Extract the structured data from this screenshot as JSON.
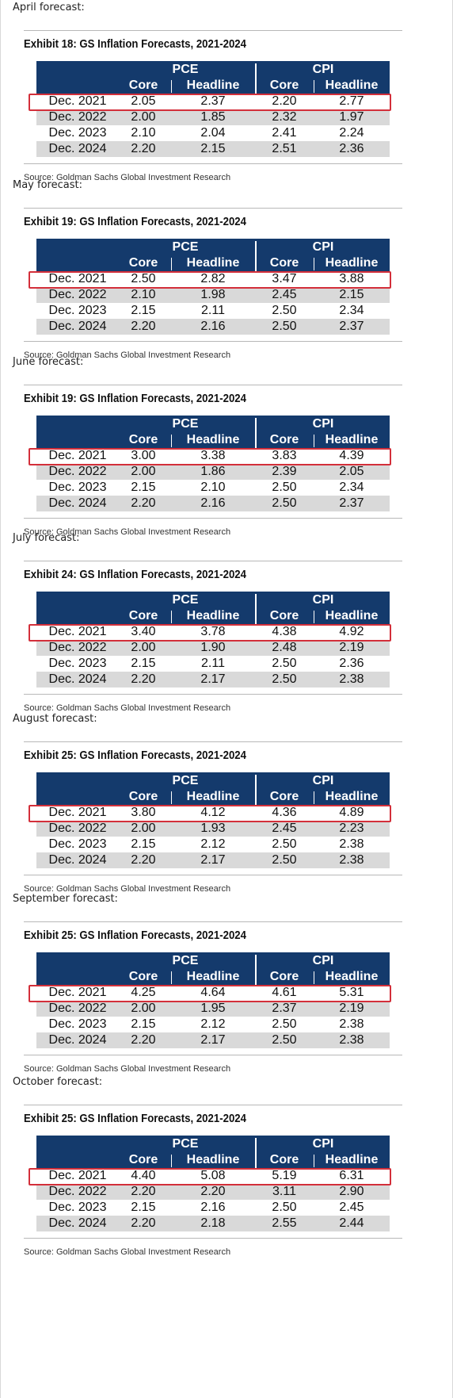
{
  "header_groups": [
    "PCE",
    "CPI"
  ],
  "sub_headers": [
    "Core",
    "Headline",
    "Core",
    "Headline"
  ],
  "source": "Source: Goldman Sachs Global Investment Research",
  "highlight_color": "#d32f3a",
  "header_color": "#143a6c",
  "sections": [
    {
      "month_label": "April forecast:",
      "exhibit_title": "Exhibit 18: GS Inflation Forecasts, 2021-2024",
      "rows": [
        {
          "label": "Dec. 2021",
          "pce_core": "2.05",
          "pce_headline": "2.37",
          "cpi_core": "2.20",
          "cpi_headline": "2.77"
        },
        {
          "label": "Dec. 2022",
          "pce_core": "2.00",
          "pce_headline": "1.85",
          "cpi_core": "2.32",
          "cpi_headline": "1.97"
        },
        {
          "label": "Dec. 2023",
          "pce_core": "2.10",
          "pce_headline": "2.04",
          "cpi_core": "2.41",
          "cpi_headline": "2.24"
        },
        {
          "label": "Dec. 2024",
          "pce_core": "2.20",
          "pce_headline": "2.15",
          "cpi_core": "2.51",
          "cpi_headline": "2.36"
        }
      ]
    },
    {
      "month_label": "May forecast:",
      "exhibit_title": "Exhibit 19: GS Inflation Forecasts, 2021-2024",
      "rows": [
        {
          "label": "Dec. 2021",
          "pce_core": "2.50",
          "pce_headline": "2.82",
          "cpi_core": "3.47",
          "cpi_headline": "3.88"
        },
        {
          "label": "Dec. 2022",
          "pce_core": "2.10",
          "pce_headline": "1.98",
          "cpi_core": "2.45",
          "cpi_headline": "2.15"
        },
        {
          "label": "Dec. 2023",
          "pce_core": "2.15",
          "pce_headline": "2.11",
          "cpi_core": "2.50",
          "cpi_headline": "2.34"
        },
        {
          "label": "Dec. 2024",
          "pce_core": "2.20",
          "pce_headline": "2.16",
          "cpi_core": "2.50",
          "cpi_headline": "2.37"
        }
      ]
    },
    {
      "month_label": "June forecast:",
      "exhibit_title": "Exhibit 19: GS Inflation Forecasts, 2021-2024",
      "rows": [
        {
          "label": "Dec. 2021",
          "pce_core": "3.00",
          "pce_headline": "3.38",
          "cpi_core": "3.83",
          "cpi_headline": "4.39"
        },
        {
          "label": "Dec. 2022",
          "pce_core": "2.00",
          "pce_headline": "1.86",
          "cpi_core": "2.39",
          "cpi_headline": "2.05"
        },
        {
          "label": "Dec. 2023",
          "pce_core": "2.15",
          "pce_headline": "2.10",
          "cpi_core": "2.50",
          "cpi_headline": "2.34"
        },
        {
          "label": "Dec. 2024",
          "pce_core": "2.20",
          "pce_headline": "2.16",
          "cpi_core": "2.50",
          "cpi_headline": "2.37"
        }
      ]
    },
    {
      "month_label": "July forecast:",
      "exhibit_title": "Exhibit 24: GS Inflation Forecasts, 2021-2024",
      "rows": [
        {
          "label": "Dec. 2021",
          "pce_core": "3.40",
          "pce_headline": "3.78",
          "cpi_core": "4.38",
          "cpi_headline": "4.92"
        },
        {
          "label": "Dec. 2022",
          "pce_core": "2.00",
          "pce_headline": "1.90",
          "cpi_core": "2.48",
          "cpi_headline": "2.19"
        },
        {
          "label": "Dec. 2023",
          "pce_core": "2.15",
          "pce_headline": "2.11",
          "cpi_core": "2.50",
          "cpi_headline": "2.36"
        },
        {
          "label": "Dec. 2024",
          "pce_core": "2.20",
          "pce_headline": "2.17",
          "cpi_core": "2.50",
          "cpi_headline": "2.38"
        }
      ]
    },
    {
      "month_label": "August forecast:",
      "exhibit_title": "Exhibit 25: GS Inflation Forecasts, 2021-2024",
      "rows": [
        {
          "label": "Dec. 2021",
          "pce_core": "3.80",
          "pce_headline": "4.12",
          "cpi_core": "4.36",
          "cpi_headline": "4.89"
        },
        {
          "label": "Dec. 2022",
          "pce_core": "2.00",
          "pce_headline": "1.93",
          "cpi_core": "2.45",
          "cpi_headline": "2.23"
        },
        {
          "label": "Dec. 2023",
          "pce_core": "2.15",
          "pce_headline": "2.12",
          "cpi_core": "2.50",
          "cpi_headline": "2.38"
        },
        {
          "label": "Dec. 2024",
          "pce_core": "2.20",
          "pce_headline": "2.17",
          "cpi_core": "2.50",
          "cpi_headline": "2.38"
        }
      ]
    },
    {
      "month_label": "September forecast:",
      "exhibit_title": "Exhibit 25: GS Inflation Forecasts, 2021-2024",
      "rows": [
        {
          "label": "Dec. 2021",
          "pce_core": "4.25",
          "pce_headline": "4.64",
          "cpi_core": "4.61",
          "cpi_headline": "5.31"
        },
        {
          "label": "Dec. 2022",
          "pce_core": "2.00",
          "pce_headline": "1.95",
          "cpi_core": "2.37",
          "cpi_headline": "2.19"
        },
        {
          "label": "Dec. 2023",
          "pce_core": "2.15",
          "pce_headline": "2.12",
          "cpi_core": "2.50",
          "cpi_headline": "2.38"
        },
        {
          "label": "Dec. 2024",
          "pce_core": "2.20",
          "pce_headline": "2.17",
          "cpi_core": "2.50",
          "cpi_headline": "2.38"
        }
      ]
    },
    {
      "month_label": "October forecast:",
      "exhibit_title": "Exhibit 25: GS Inflation Forecasts, 2021-2024",
      "rows": [
        {
          "label": "Dec. 2021",
          "pce_core": "4.40",
          "pce_headline": "5.08",
          "cpi_core": "5.19",
          "cpi_headline": "6.31"
        },
        {
          "label": "Dec. 2022",
          "pce_core": "2.20",
          "pce_headline": "2.20",
          "cpi_core": "3.11",
          "cpi_headline": "2.90"
        },
        {
          "label": "Dec. 2023",
          "pce_core": "2.15",
          "pce_headline": "2.16",
          "cpi_core": "2.50",
          "cpi_headline": "2.45"
        },
        {
          "label": "Dec. 2024",
          "pce_core": "2.20",
          "pce_headline": "2.18",
          "cpi_core": "2.55",
          "cpi_headline": "2.44"
        }
      ]
    }
  ]
}
